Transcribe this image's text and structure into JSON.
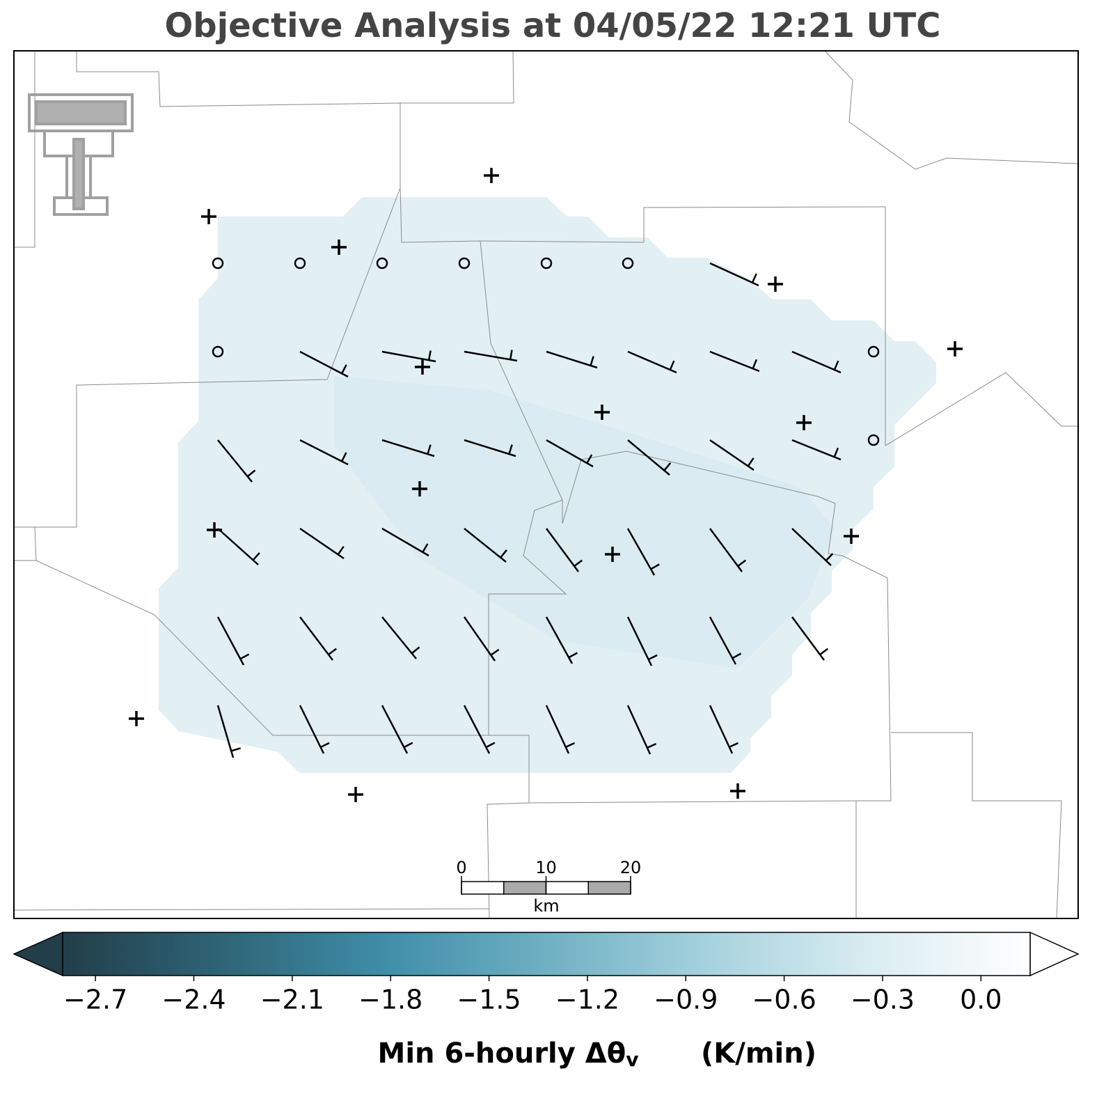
{
  "title": "Objective Analysis at 04/05/22 12:21 UTC",
  "scale_bar": {
    "ticks": [
      0,
      10,
      20
    ],
    "xlim": [
      0,
      20
    ],
    "unit": "km"
  },
  "colorbar": {
    "label": "Min 6-hourly Δθ",
    "label_subscript": "v",
    "label_units": "(K/min)",
    "lim": [
      -2.8,
      0.15
    ],
    "colors": [
      "#223e49",
      "#2f6577",
      "#3f8ea8",
      "#6fb0c3",
      "#a6d2de",
      "#d9ecf1",
      "#ffffff"
    ],
    "ticks": [
      {
        "value": -2.7,
        "label": "−2.7"
      },
      {
        "value": -2.4,
        "label": "−2.4"
      },
      {
        "value": -2.1,
        "label": "−2.1"
      },
      {
        "value": -1.8,
        "label": "−1.8"
      },
      {
        "value": -1.5,
        "label": "−1.5"
      },
      {
        "value": -1.2,
        "label": "−1.2"
      },
      {
        "value": -0.9,
        "label": "−0.9"
      },
      {
        "value": -0.6,
        "label": "−0.6"
      },
      {
        "value": -0.3,
        "label": "−0.3"
      },
      {
        "value": 0,
        "label": "0.0"
      }
    ]
  }
}
